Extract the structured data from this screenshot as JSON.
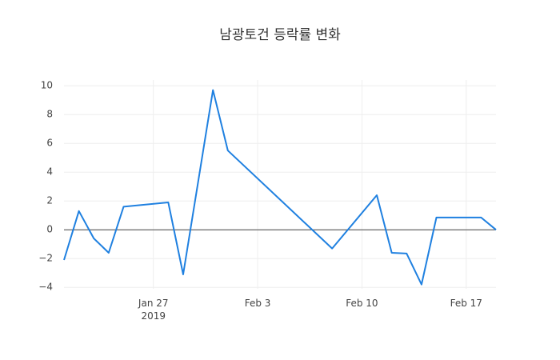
{
  "chart_data": {
    "type": "line",
    "title": "남광토건 등락률 변화",
    "x": [
      "2019-01-21",
      "2019-01-22",
      "2019-01-23",
      "2019-01-24",
      "2019-01-25",
      "2019-01-28",
      "2019-01-29",
      "2019-01-31",
      "2019-02-01",
      "2019-02-08",
      "2019-02-11",
      "2019-02-12",
      "2019-02-13",
      "2019-02-14",
      "2019-02-15",
      "2019-02-18",
      "2019-02-19"
    ],
    "series": [
      {
        "color": "#1f80e0",
        "values": [
          -2.1,
          1.3,
          -0.6,
          -1.6,
          1.6,
          1.9,
          -3.1,
          9.7,
          5.5,
          -1.3,
          2.4,
          -1.6,
          -1.65,
          -3.8,
          0.85,
          0.85,
          0.0
        ]
      }
    ],
    "xlim": [
      "2019-01-21",
      "2019-02-19"
    ],
    "xticks": [
      {
        "value": "2019-01-27",
        "label": "Jan 27\n2019"
      },
      {
        "value": "2019-02-03",
        "label": "Feb 3"
      },
      {
        "value": "2019-02-10",
        "label": "Feb 10"
      },
      {
        "value": "2019-02-17",
        "label": "Feb 17"
      }
    ],
    "ylim": [
      -4.1,
      10.4
    ],
    "yticks": [
      {
        "value": -4,
        "label": "−4"
      },
      {
        "value": -2,
        "label": "−2"
      },
      0,
      2,
      4,
      6,
      8,
      10
    ],
    "grid": true,
    "zeroline": true
  }
}
